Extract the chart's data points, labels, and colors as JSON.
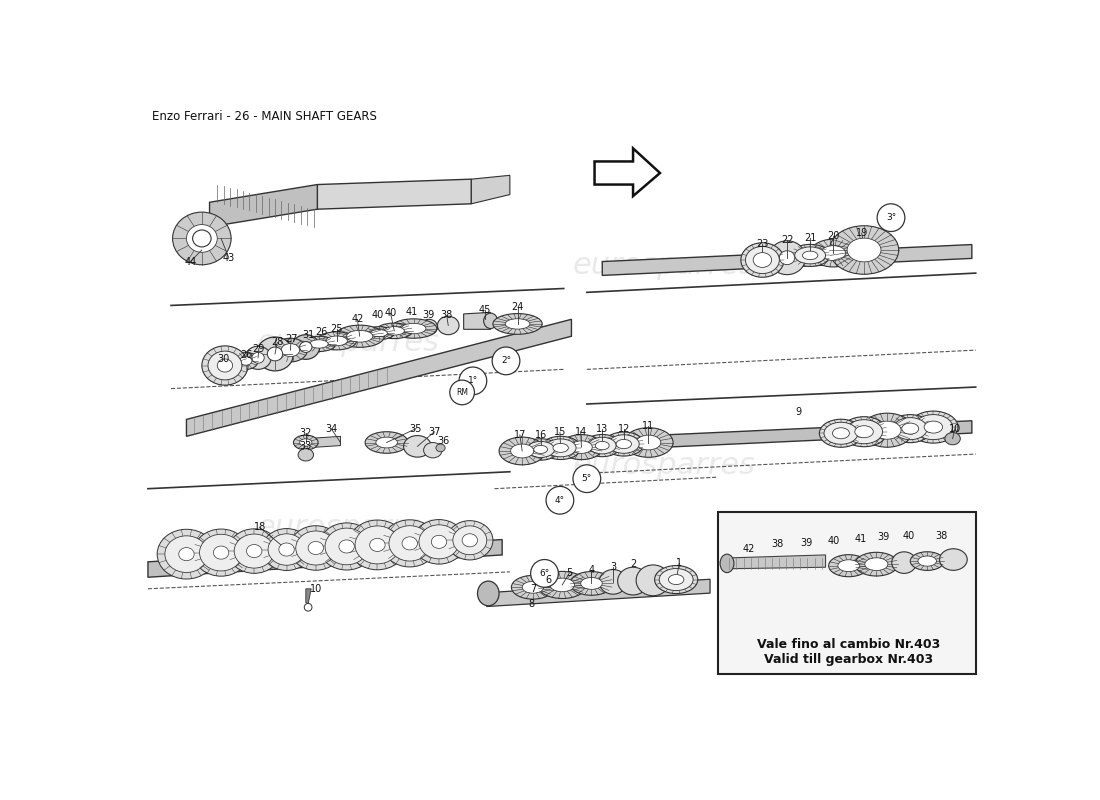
{
  "title": "Enzo Ferrari - 26 - MAIN SHAFT GEARS",
  "bg_color": "#ffffff",
  "note_it": "Vale fino al cambio Nr.403",
  "note_en": "Valid till gearbox Nr.403",
  "watermark": "eurosparres",
  "gear_color": "#888888",
  "gear_fill": "#dddddd",
  "shaft_color": "#555555",
  "shaft_fill": "#cccccc",
  "line_color": "#333333"
}
